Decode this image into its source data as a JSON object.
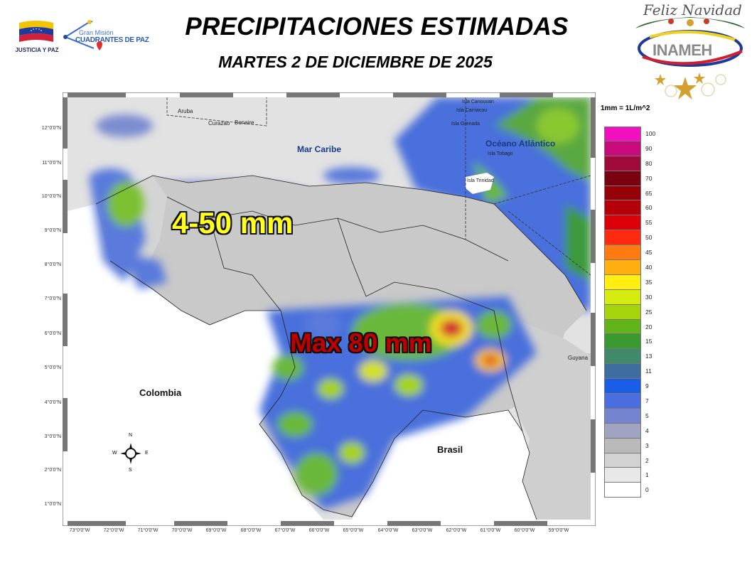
{
  "header": {
    "title": "PRECIPITACIONES ESTIMADAS",
    "subtitle": "MARTES 2 DE DICIEMBRE DE 2025"
  },
  "logos": {
    "left_caption": "JUSTICIA Y PAZ",
    "gran_mision_small": "Gran Misión",
    "gran_mision_big": "CUADRANTES DE PAZ",
    "right_greeting": "Feliz Navidad",
    "right_org": "INAMEH"
  },
  "map": {
    "annotations": {
      "range": "4-50 mm",
      "max": "Max 80  mm"
    },
    "seas": [
      "Mar Caribe",
      "Océano Atlántico"
    ],
    "countries": [
      "Colombia",
      "Brasil",
      "Guyana"
    ],
    "places": [
      "Aruba",
      "Curazao",
      "Bonaire",
      "Isla Canouvan",
      "Isla Carriacou",
      "Isla Grenada",
      "Isla Tobago",
      "Isla Trinidad"
    ],
    "compass": {
      "n": "N",
      "s": "S",
      "e": "E",
      "w": "W"
    },
    "lat_labels": [
      "12°0'0\"N",
      "11°0'0\"N",
      "10°0'0\"N",
      "9°0'0\"N",
      "8°0'0\"N",
      "7°0'0\"N",
      "6°0'0\"N",
      "5°0'0\"N",
      "4°0'0\"N",
      "3°0'0\"N",
      "2°0'0\"N",
      "1°0'0\"N"
    ],
    "lon_labels": [
      "73°0'0\"W",
      "72°0'0\"W",
      "71°0'0\"W",
      "70°0'0\"W",
      "69°0'0\"W",
      "68°0'0\"W",
      "67°0'0\"W",
      "66°0'0\"W",
      "65°0'0\"W",
      "64°0'0\"W",
      "63°0'0\"W",
      "62°0'0\"W",
      "61°0'0\"W",
      "60°0'0\"W",
      "59°0'0\"W"
    ]
  },
  "legend": {
    "unit": "1mm = 1L/m^2",
    "items": [
      {
        "label": "100",
        "color": "#f010c0"
      },
      {
        "label": "90",
        "color": "#c80a7a"
      },
      {
        "label": "80",
        "color": "#a00a3a"
      },
      {
        "label": "70",
        "color": "#7a0010"
      },
      {
        "label": "65",
        "color": "#960008"
      },
      {
        "label": "60",
        "color": "#b40008"
      },
      {
        "label": "55",
        "color": "#dc0008"
      },
      {
        "label": "50",
        "color": "#ff2a10"
      },
      {
        "label": "45",
        "color": "#ff7a10"
      },
      {
        "label": "40",
        "color": "#ffb010"
      },
      {
        "label": "35",
        "color": "#ffee10"
      },
      {
        "label": "30",
        "color": "#d4ec10"
      },
      {
        "label": "25",
        "color": "#a6d40a"
      },
      {
        "label": "20",
        "color": "#62b41a"
      },
      {
        "label": "15",
        "color": "#3a9a30"
      },
      {
        "label": "13",
        "color": "#3e8a6a"
      },
      {
        "label": "11",
        "color": "#3e6ea0"
      },
      {
        "label": "9",
        "color": "#1a5ee8"
      },
      {
        "label": "7",
        "color": "#4a6ee0"
      },
      {
        "label": "5",
        "color": "#7484d0"
      },
      {
        "label": "4",
        "color": "#a0a4c0"
      },
      {
        "label": "3",
        "color": "#bababa"
      },
      {
        "label": "2",
        "color": "#d2d2d2"
      },
      {
        "label": "1",
        "color": "#e8e8e8"
      },
      {
        "label": "0",
        "color": "#ffffff"
      }
    ]
  }
}
